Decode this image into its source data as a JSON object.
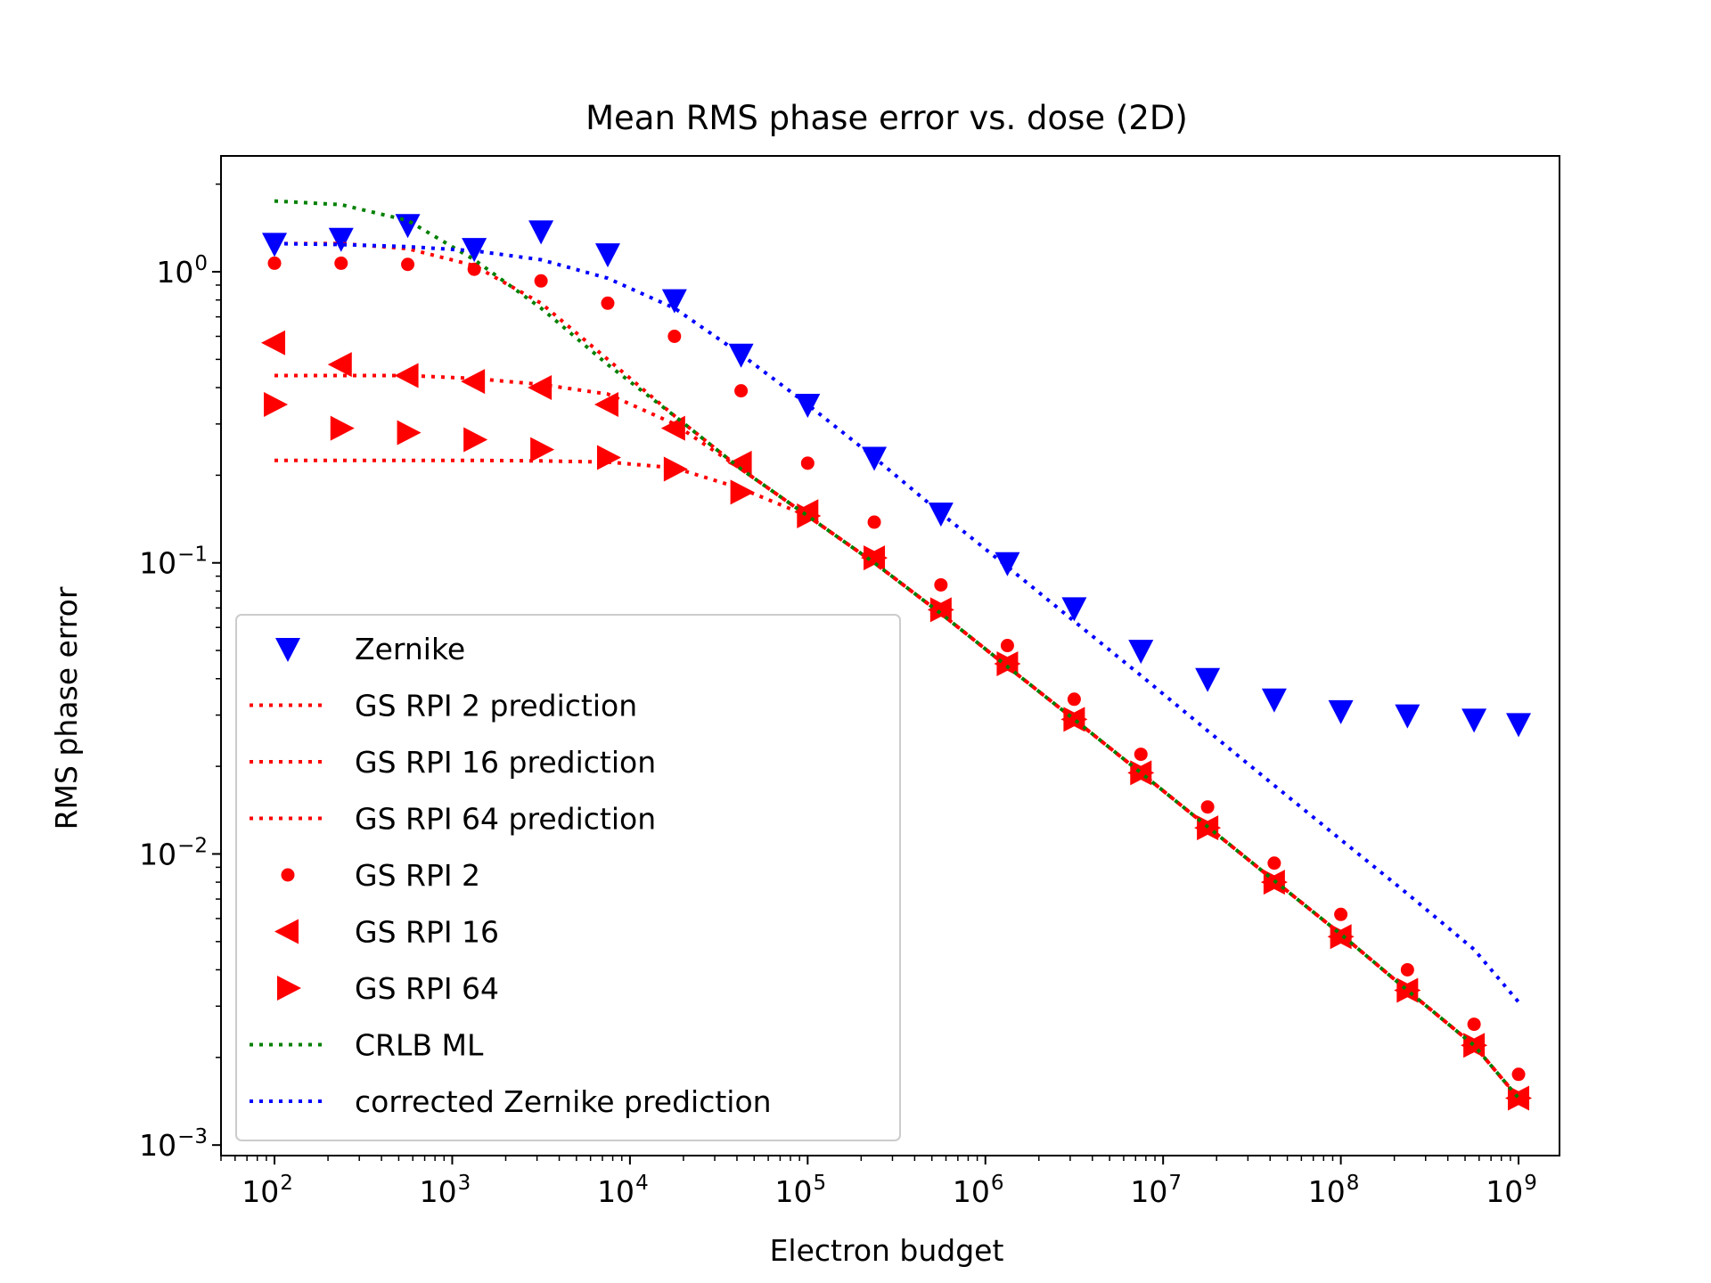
{
  "chart_data": {
    "type": "scatter",
    "title": "Mean RMS phase error vs. dose (2D)",
    "xlabel": "Electron budget",
    "ylabel": "RMS phase error",
    "xscale": "log",
    "yscale": "log",
    "xlim": [
      50,
      1700000000
    ],
    "ylim": [
      0.00092,
      2.5
    ],
    "x_ticks": [
      {
        "value": 100,
        "base": "10",
        "exp": "2"
      },
      {
        "value": 1000,
        "base": "10",
        "exp": "3"
      },
      {
        "value": 10000,
        "base": "10",
        "exp": "4"
      },
      {
        "value": 100000,
        "base": "10",
        "exp": "5"
      },
      {
        "value": 1000000,
        "base": "10",
        "exp": "6"
      },
      {
        "value": 10000000,
        "base": "10",
        "exp": "7"
      },
      {
        "value": 100000000,
        "base": "10",
        "exp": "8"
      },
      {
        "value": 1000000000,
        "base": "10",
        "exp": "9"
      }
    ],
    "y_ticks": [
      {
        "value": 1,
        "base": "10",
        "exp": "0"
      },
      {
        "value": 0.1,
        "base": "10",
        "exp": "−1"
      },
      {
        "value": 0.01,
        "base": "10",
        "exp": "−2"
      },
      {
        "value": 0.001,
        "base": "10",
        "exp": "−3"
      }
    ],
    "legend_position": "lower-left",
    "colors": {
      "red": "#ff0000",
      "green": "#008000",
      "blue": "#0000ff"
    },
    "x": [
      100,
      237,
      562,
      1330,
      3160,
      7500,
      17800,
      42200,
      100000,
      237000,
      562000,
      1330000,
      3160000,
      7500000,
      17800000,
      42200000,
      100000000,
      237000000,
      562000000,
      1000000000
    ],
    "series": [
      {
        "name": "Zernike",
        "kind": "marker",
        "marker": "triangle-down",
        "color": "#0000ff",
        "x": [
          100,
          237,
          562,
          1330,
          3160,
          7500,
          17800,
          42200,
          100000,
          237000,
          562000,
          1330000,
          3160000,
          7500000,
          17800000,
          42200000,
          100000000,
          237000000,
          562000000,
          1000000000
        ],
        "y": [
          1.25,
          1.3,
          1.45,
          1.2,
          1.38,
          1.15,
          0.8,
          0.52,
          0.35,
          0.23,
          0.148,
          0.1,
          0.07,
          0.05,
          0.04,
          0.034,
          0.031,
          0.03,
          0.029,
          0.028
        ]
      },
      {
        "name": "GS RPI 2 prediction",
        "kind": "line",
        "color": "#ff0000",
        "x": [
          100,
          237,
          562,
          1330,
          3160,
          7500,
          17800,
          42200,
          100000,
          237000,
          562000,
          1330000,
          3160000,
          7500000,
          17800000,
          42200000,
          100000000,
          237000000,
          562000000,
          1000000000
        ],
        "y": [
          1.25,
          1.25,
          1.2,
          1.05,
          0.78,
          0.5,
          0.32,
          0.21,
          0.145,
          0.1,
          0.067,
          0.044,
          0.029,
          0.019,
          0.0124,
          0.0081,
          0.0053,
          0.0034,
          0.0022,
          0.00145
        ]
      },
      {
        "name": "GS RPI 16 prediction",
        "kind": "line",
        "color": "#ff0000",
        "x": [
          100,
          237,
          562,
          1330,
          3160,
          7500,
          17800,
          42200,
          100000,
          237000,
          562000,
          1330000,
          3160000,
          7500000,
          17800000,
          42200000,
          100000000,
          237000000,
          562000000,
          1000000000
        ],
        "y": [
          0.44,
          0.44,
          0.44,
          0.43,
          0.41,
          0.38,
          0.3,
          0.21,
          0.145,
          0.1,
          0.067,
          0.044,
          0.029,
          0.019,
          0.0124,
          0.0081,
          0.0053,
          0.0034,
          0.0022,
          0.00145
        ]
      },
      {
        "name": "GS RPI 64 prediction",
        "kind": "line",
        "color": "#ff0000",
        "x": [
          100,
          237,
          562,
          1330,
          3160,
          7500,
          17800,
          42200,
          100000,
          237000,
          562000,
          1330000,
          3160000,
          7500000,
          17800000,
          42200000,
          100000000,
          237000000,
          562000000,
          1000000000
        ],
        "y": [
          0.225,
          0.225,
          0.225,
          0.225,
          0.224,
          0.222,
          0.212,
          0.18,
          0.145,
          0.1,
          0.067,
          0.044,
          0.029,
          0.019,
          0.0124,
          0.0081,
          0.0053,
          0.0034,
          0.0022,
          0.00145
        ]
      },
      {
        "name": "GS RPI 2",
        "kind": "marker",
        "marker": "circle",
        "color": "#ff0000",
        "x": [
          100,
          237,
          562,
          1330,
          3160,
          7500,
          17800,
          42200,
          100000,
          237000,
          562000,
          1330000,
          3160000,
          7500000,
          17800000,
          42200000,
          100000000,
          237000000,
          562000000,
          1000000000
        ],
        "y": [
          1.07,
          1.07,
          1.06,
          1.02,
          0.93,
          0.78,
          0.6,
          0.39,
          0.22,
          0.138,
          0.084,
          0.052,
          0.034,
          0.022,
          0.0145,
          0.0093,
          0.0062,
          0.004,
          0.0026,
          0.00175
        ]
      },
      {
        "name": "GS RPI 16",
        "kind": "marker",
        "marker": "triangle-left",
        "color": "#ff0000",
        "x": [
          100,
          237,
          562,
          1330,
          3160,
          7500,
          17800,
          42200,
          100000,
          237000,
          562000,
          1330000,
          3160000,
          7500000,
          17800000,
          42200000,
          100000000,
          237000000,
          562000000,
          1000000000
        ],
        "y": [
          0.57,
          0.48,
          0.44,
          0.42,
          0.4,
          0.35,
          0.29,
          0.22,
          0.15,
          0.104,
          0.069,
          0.045,
          0.029,
          0.019,
          0.0123,
          0.008,
          0.0052,
          0.0034,
          0.0022,
          0.00145
        ]
      },
      {
        "name": "GS RPI 64",
        "kind": "marker",
        "marker": "triangle-right",
        "color": "#ff0000",
        "x": [
          100,
          237,
          562,
          1330,
          3160,
          7500,
          17800,
          42200,
          100000,
          237000,
          562000,
          1330000,
          3160000,
          7500000,
          17800000,
          42200000,
          100000000,
          237000000,
          562000000,
          1000000000
        ],
        "y": [
          0.35,
          0.29,
          0.28,
          0.265,
          0.245,
          0.23,
          0.21,
          0.175,
          0.145,
          0.104,
          0.069,
          0.045,
          0.029,
          0.019,
          0.0123,
          0.008,
          0.0052,
          0.0034,
          0.0022,
          0.00145
        ]
      },
      {
        "name": "CRLB ML",
        "kind": "line",
        "color": "#008000",
        "x": [
          100,
          237,
          562,
          1330,
          3160,
          7500,
          17800,
          42200,
          100000,
          237000,
          562000,
          1330000,
          3160000,
          7500000,
          17800000,
          42200000,
          100000000,
          237000000,
          562000000,
          1000000000
        ],
        "y": [
          1.75,
          1.7,
          1.5,
          1.1,
          0.75,
          0.48,
          0.32,
          0.21,
          0.145,
          0.1,
          0.067,
          0.044,
          0.029,
          0.019,
          0.0124,
          0.0081,
          0.0053,
          0.0034,
          0.0022,
          0.00145
        ]
      },
      {
        "name": "corrected Zernike prediction",
        "kind": "line",
        "color": "#0000ff",
        "x": [
          100,
          237,
          562,
          1330,
          3160,
          7500,
          17800,
          42200,
          100000,
          237000,
          562000,
          1330000,
          3160000,
          7500000,
          17800000,
          42200000,
          100000000,
          237000000,
          562000000,
          1000000000
        ],
        "y": [
          1.25,
          1.24,
          1.22,
          1.18,
          1.1,
          0.95,
          0.75,
          0.52,
          0.35,
          0.23,
          0.148,
          0.097,
          0.063,
          0.041,
          0.0265,
          0.0172,
          0.0112,
          0.0073,
          0.0047,
          0.0031
        ]
      }
    ]
  }
}
